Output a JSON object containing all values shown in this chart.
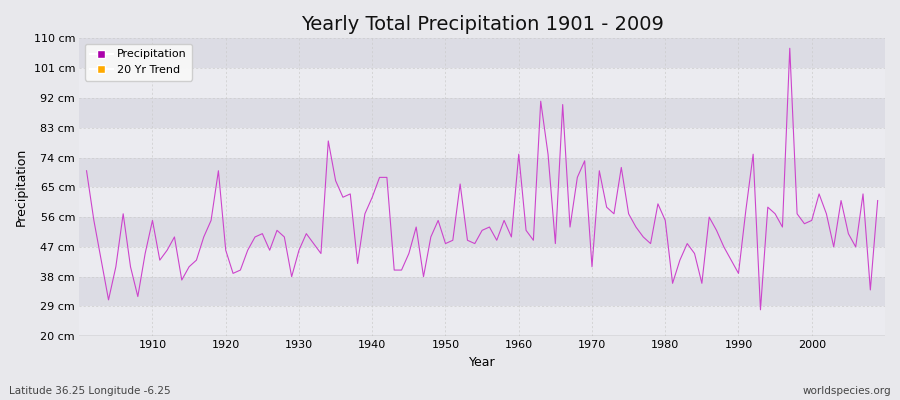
{
  "title": "Yearly Total Precipitation 1901 - 2009",
  "xlabel": "Year",
  "ylabel": "Precipitation",
  "subtitle": "Latitude 36.25 Longitude -6.25",
  "watermark": "worldspecies.org",
  "ylim": [
    20,
    110
  ],
  "yticks": [
    20,
    29,
    38,
    47,
    56,
    65,
    74,
    83,
    92,
    101,
    110
  ],
  "ytick_labels": [
    "20 cm",
    "29 cm",
    "38 cm",
    "47 cm",
    "56 cm",
    "65 cm",
    "74 cm",
    "83 cm",
    "92 cm",
    "101 cm",
    "110 cm"
  ],
  "xlim": [
    1900,
    2010
  ],
  "xticks": [
    1910,
    1920,
    1930,
    1940,
    1950,
    1960,
    1970,
    1980,
    1990,
    2000
  ],
  "years": [
    1901,
    1902,
    1903,
    1904,
    1905,
    1906,
    1907,
    1908,
    1909,
    1910,
    1911,
    1912,
    1913,
    1914,
    1915,
    1916,
    1917,
    1918,
    1919,
    1920,
    1921,
    1922,
    1923,
    1924,
    1925,
    1926,
    1927,
    1928,
    1929,
    1930,
    1931,
    1932,
    1933,
    1934,
    1935,
    1936,
    1937,
    1938,
    1939,
    1940,
    1941,
    1942,
    1943,
    1944,
    1945,
    1946,
    1947,
    1948,
    1949,
    1950,
    1951,
    1952,
    1953,
    1954,
    1955,
    1956,
    1957,
    1958,
    1959,
    1960,
    1961,
    1962,
    1963,
    1964,
    1965,
    1966,
    1967,
    1968,
    1969,
    1970,
    1971,
    1972,
    1973,
    1974,
    1975,
    1976,
    1977,
    1978,
    1979,
    1980,
    1981,
    1982,
    1983,
    1984,
    1985,
    1986,
    1987,
    1988,
    1989,
    1990,
    1991,
    1992,
    1993,
    1994,
    1995,
    1996,
    1997,
    1998,
    1999,
    2000,
    2001,
    2002,
    2003,
    2004,
    2005,
    2006,
    2007,
    2008,
    2009
  ],
  "precipitation": [
    70,
    55,
    43,
    31,
    41,
    57,
    41,
    32,
    45,
    55,
    43,
    46,
    50,
    37,
    41,
    43,
    50,
    55,
    70,
    46,
    39,
    40,
    46,
    50,
    51,
    46,
    52,
    50,
    38,
    46,
    51,
    48,
    45,
    79,
    67,
    62,
    63,
    42,
    57,
    62,
    68,
    68,
    40,
    40,
    45,
    53,
    38,
    50,
    55,
    48,
    49,
    66,
    49,
    48,
    52,
    53,
    49,
    55,
    50,
    75,
    52,
    49,
    91,
    75,
    48,
    90,
    53,
    68,
    73,
    41,
    70,
    59,
    57,
    71,
    57,
    53,
    50,
    48,
    60,
    55,
    36,
    43,
    48,
    45,
    36,
    56,
    52,
    47,
    43,
    39,
    58,
    75,
    28,
    59,
    57,
    53,
    107,
    57,
    54,
    55,
    63,
    57,
    47,
    61,
    51,
    47,
    63,
    34,
    61
  ],
  "line_color": "#cc44cc",
  "bg_color": "#e8e8ec",
  "band_color_light": "#ebebf0",
  "band_color_dark": "#dcdce4",
  "grid_color": "#cccccc",
  "legend_bg": "#f8f8f8",
  "title_fontsize": 14,
  "axis_fontsize": 9,
  "tick_fontsize": 8
}
